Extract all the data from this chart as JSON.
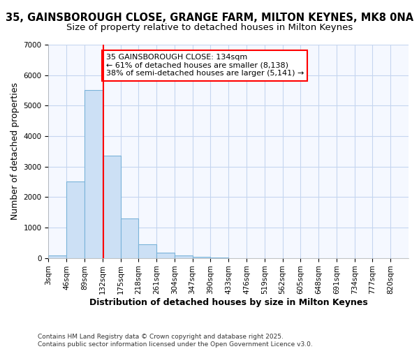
{
  "title_line1": "35, GAINSBOROUGH CLOSE, GRANGE FARM, MILTON KEYNES, MK8 0NA",
  "title_line2": "Size of property relative to detached houses in Milton Keynes",
  "xlabel": "Distribution of detached houses by size in Milton Keynes",
  "ylabel": "Number of detached properties",
  "footer_line1": "Contains HM Land Registry data © Crown copyright and database right 2025.",
  "footer_line2": "Contains public sector information licensed under the Open Government Licence v3.0.",
  "annotation_line1": "35 GAINSBOROUGH CLOSE: 134sqm",
  "annotation_line2": "← 61% of detached houses are smaller (8,138)",
  "annotation_line3": "38% of semi-detached houses are larger (5,141) →",
  "bar_edges": [
    3,
    46,
    89,
    132,
    175,
    218,
    261,
    304,
    347,
    390,
    433,
    476,
    519,
    562,
    605,
    648,
    691,
    734,
    777,
    820,
    863
  ],
  "bar_heights": [
    80,
    2500,
    5500,
    3350,
    1300,
    450,
    175,
    75,
    30,
    5,
    2,
    1,
    0,
    0,
    0,
    0,
    0,
    0,
    0,
    0
  ],
  "bar_color": "#cce0f5",
  "bar_edgecolor": "#7ab3d9",
  "bar_alpha": 1.0,
  "redline_x": 134,
  "ylim": [
    0,
    7000
  ],
  "yticks": [
    0,
    1000,
    2000,
    3000,
    4000,
    5000,
    6000,
    7000
  ],
  "bg_color": "#f5f8ff",
  "grid_color": "#c5d5ef",
  "title_fontsize": 10.5,
  "subtitle_fontsize": 9.5,
  "axis_label_fontsize": 9,
  "tick_fontsize": 7.5,
  "annotation_fontsize": 8,
  "footer_fontsize": 6.5
}
